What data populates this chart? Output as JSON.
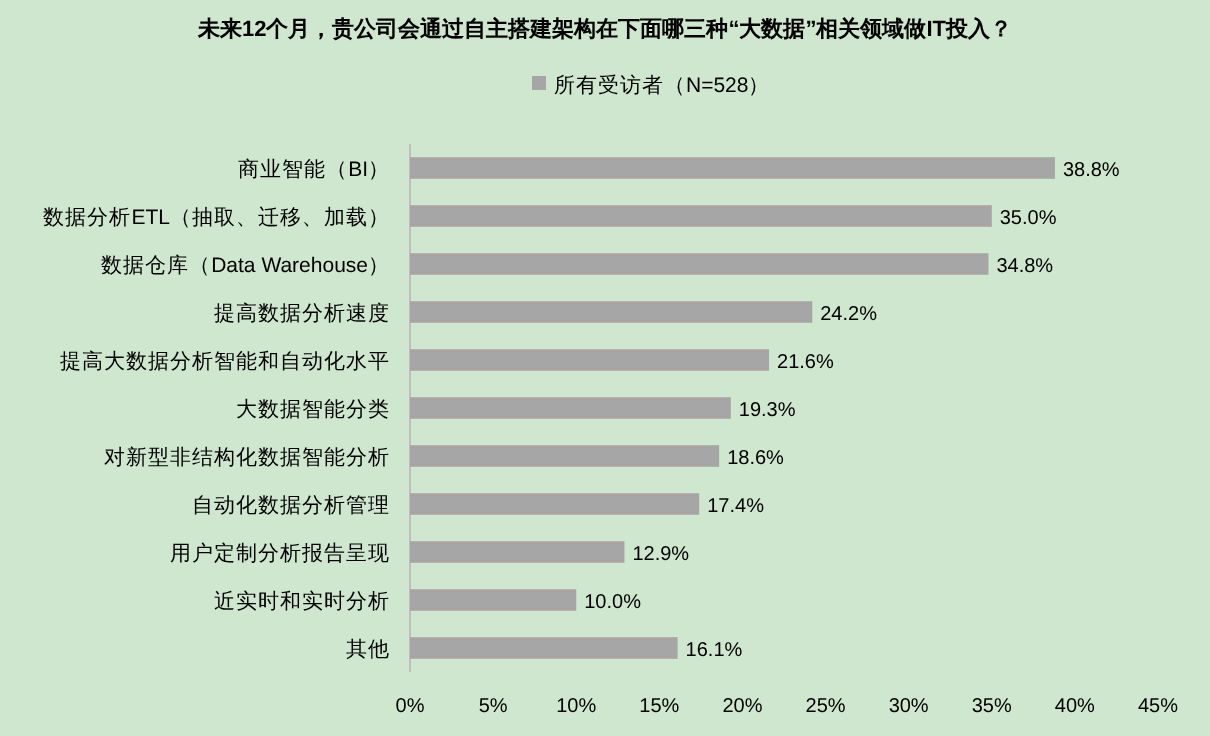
{
  "chart_data": {
    "type": "bar",
    "orientation": "horizontal",
    "title": "未来12个月，贵公司会通过自主搭建架构在下面哪三种“大数据”相关领域做IT投入？",
    "categories": [
      "商业智能（BI）",
      "数据分析ETL（抽取、迁移、加载）",
      "数据仓库（Data Warehouse）",
      "提高数据分析速度",
      "提高大数据分析智能和自动化水平",
      "大数据智能分类",
      "对新型非结构化数据智能分析",
      "自动化数据分析管理",
      "用户定制分析报告呈现",
      "近实时和实时分析",
      "其他"
    ],
    "series": [
      {
        "name": "所有受访者（N=528）",
        "color": "#a6a6a6",
        "values": [
          38.8,
          35.0,
          34.8,
          24.2,
          21.6,
          19.3,
          18.6,
          17.4,
          12.9,
          10.0,
          16.1
        ],
        "value_labels": [
          "38.8%",
          "35.0%",
          "34.8%",
          "24.2%",
          "21.6%",
          "19.3%",
          "18.6%",
          "17.4%",
          "12.9%",
          "10.0%",
          "16.1%"
        ]
      }
    ],
    "xlim": [
      0,
      45
    ],
    "xticks": [
      {
        "value": 0,
        "label": "0%"
      },
      {
        "value": 5,
        "label": "5%"
      },
      {
        "value": 10,
        "label": "10%"
      },
      {
        "value": 15,
        "label": "15%"
      },
      {
        "value": 20,
        "label": "20%"
      },
      {
        "value": 25,
        "label": "25%"
      },
      {
        "value": 30,
        "label": "30%"
      },
      {
        "value": 35,
        "label": "35%"
      },
      {
        "value": 40,
        "label": "40%"
      },
      {
        "value": 45,
        "label": "45%"
      }
    ],
    "legend": "top",
    "grid": false
  }
}
